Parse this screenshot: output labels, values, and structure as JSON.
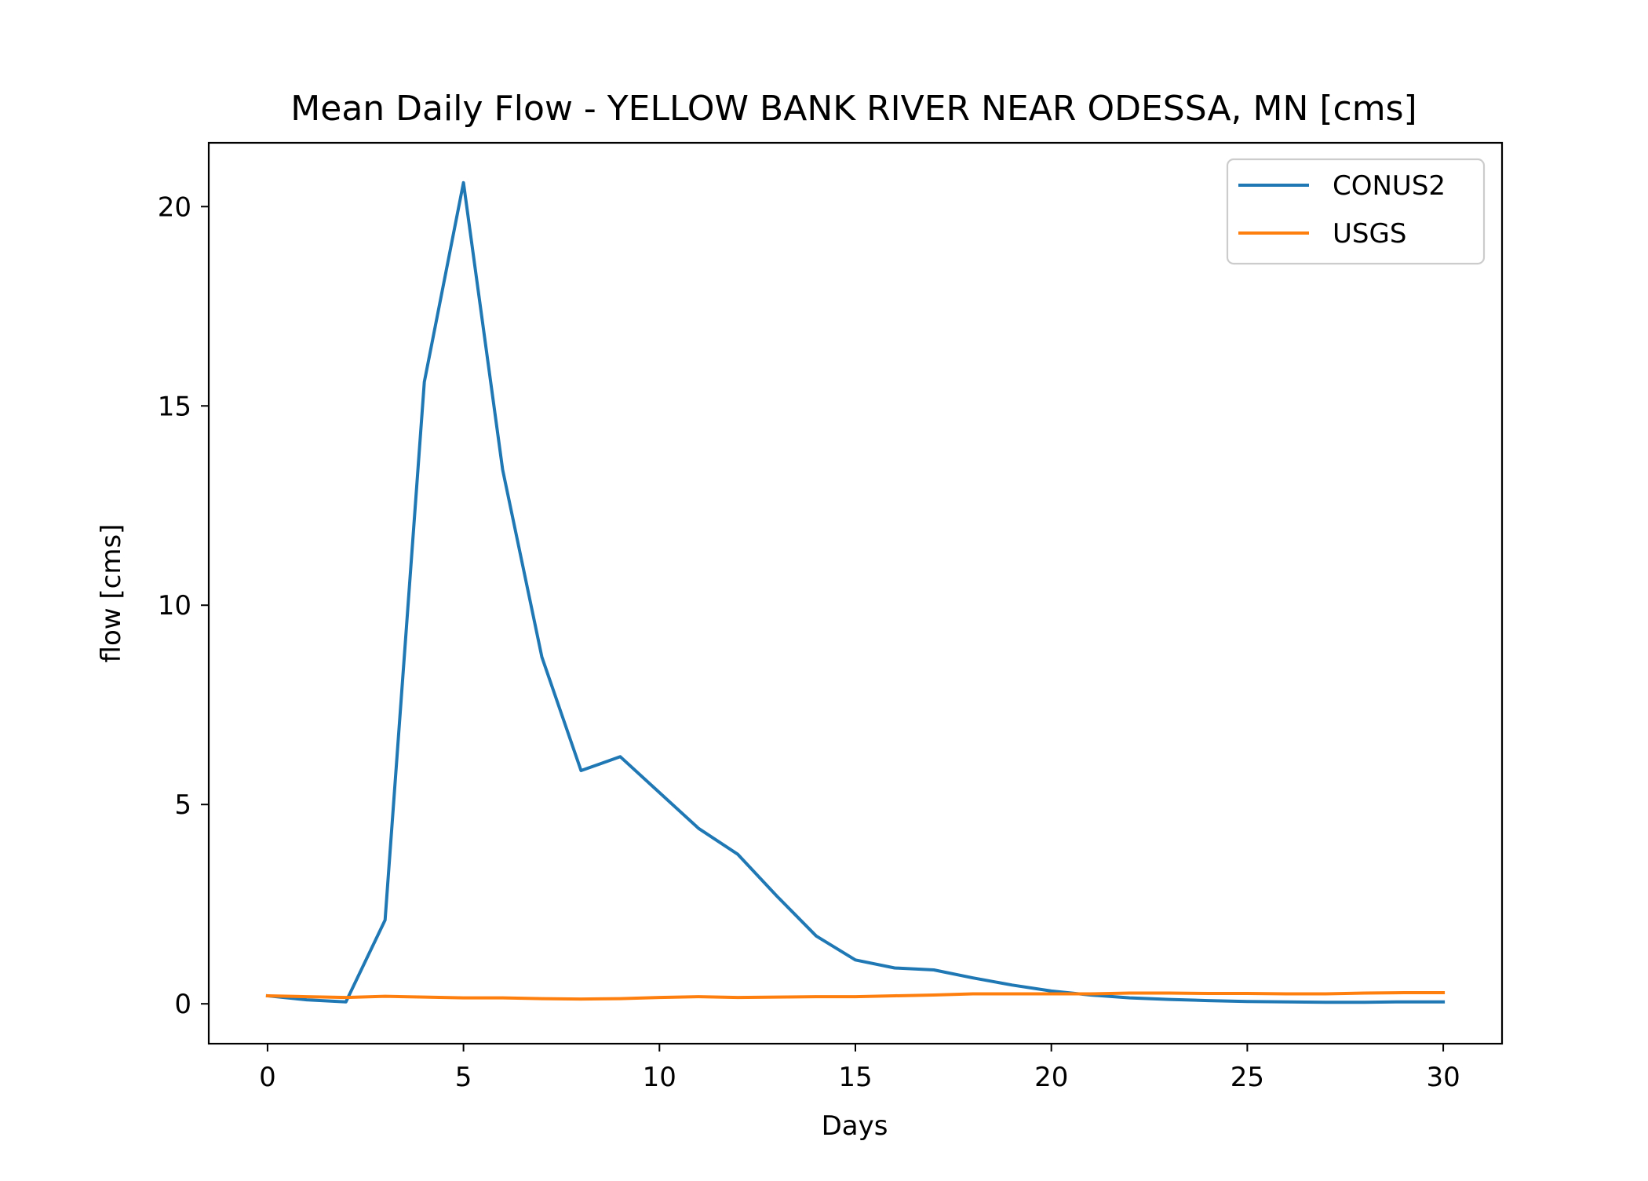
{
  "chart_data": {
    "type": "line",
    "title": "Mean Daily Flow - YELLOW BANK RIVER NEAR ODESSA, MN [cms]",
    "xlabel": "Days",
    "ylabel": "flow [cms]",
    "xlim": [
      -1.5,
      31.5
    ],
    "ylim": [
      -1.0,
      21.6
    ],
    "xticks": [
      0,
      5,
      10,
      15,
      20,
      25,
      30
    ],
    "xtick_labels": [
      "0",
      "5",
      "10",
      "15",
      "20",
      "25",
      "30"
    ],
    "yticks": [
      0,
      5,
      10,
      15,
      20
    ],
    "ytick_labels": [
      "0",
      "5",
      "10",
      "15",
      "20"
    ],
    "grid": false,
    "legend_position": "top-right",
    "x": [
      0,
      1,
      2,
      3,
      4,
      5,
      6,
      7,
      8,
      9,
      10,
      11,
      12,
      13,
      14,
      15,
      16,
      17,
      18,
      19,
      20,
      21,
      22,
      23,
      24,
      25,
      26,
      27,
      28,
      29,
      30
    ],
    "series": [
      {
        "name": "CONUS2",
        "color": "#1f77b4",
        "values": [
          0.2,
          0.1,
          0.05,
          2.1,
          15.6,
          20.6,
          13.4,
          8.7,
          5.85,
          6.2,
          5.3,
          4.4,
          3.75,
          2.7,
          1.7,
          1.1,
          0.9,
          0.85,
          0.65,
          0.47,
          0.32,
          0.22,
          0.15,
          0.11,
          0.08,
          0.06,
          0.05,
          0.04,
          0.04,
          0.05,
          0.05
        ]
      },
      {
        "name": "USGS",
        "color": "#ff7f0e",
        "values": [
          0.2,
          0.18,
          0.16,
          0.19,
          0.17,
          0.15,
          0.15,
          0.13,
          0.12,
          0.13,
          0.16,
          0.18,
          0.16,
          0.17,
          0.18,
          0.18,
          0.2,
          0.22,
          0.25,
          0.25,
          0.25,
          0.25,
          0.27,
          0.27,
          0.26,
          0.26,
          0.25,
          0.25,
          0.27,
          0.28,
          0.28
        ]
      }
    ]
  }
}
